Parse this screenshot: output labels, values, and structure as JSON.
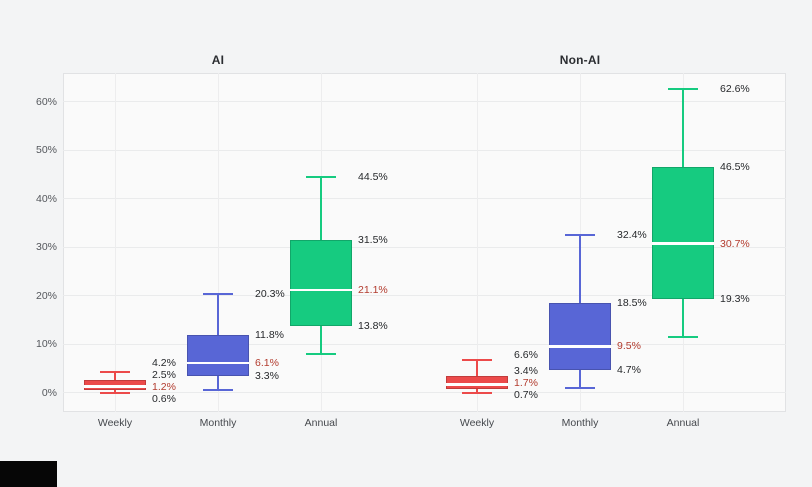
{
  "colors": {
    "page_bg": "#f3f4f5",
    "plot_bg": "#fafafa",
    "grid": "#eaebec",
    "label": "#26282b",
    "median_label": "#b23b2e",
    "median_line": "#ffffff"
  },
  "chart_data": {
    "type": "box",
    "y_axis": {
      "tick_labels": [
        "0%",
        "10%",
        "20%",
        "30%",
        "40%",
        "50%",
        "60%"
      ],
      "tick_values": [
        0,
        10,
        20,
        30,
        40,
        50,
        60
      ],
      "range_pct": [
        -4,
        66
      ],
      "grid": true
    },
    "categories": [
      "Weekly",
      "Monthly",
      "Annual"
    ],
    "panels": [
      {
        "title": "AI",
        "boxes": [
          {
            "category": "Weekly",
            "color": "#ec4a4a",
            "whisker_high": 4.2,
            "q3": 2.5,
            "median": 1.2,
            "q1": 0.6,
            "whisker_low": 0.0,
            "labels": [
              {
                "text": "4.2%",
                "value": 4.2,
                "emph": false
              },
              {
                "text": "2.5%",
                "value": 2.5,
                "emph": false
              },
              {
                "text": "1.2%",
                "value": 1.2,
                "emph": true
              },
              {
                "text": "0.6%",
                "value": 0.6,
                "emph": false
              }
            ]
          },
          {
            "category": "Monthly",
            "color": "#5866d6",
            "whisker_high": 20.3,
            "q3": 11.8,
            "median": 6.1,
            "q1": 3.3,
            "whisker_low": 0.5,
            "labels": [
              {
                "text": "20.3%",
                "value": 20.3,
                "emph": false
              },
              {
                "text": "11.8%",
                "value": 11.8,
                "emph": false
              },
              {
                "text": "6.1%",
                "value": 6.1,
                "emph": true
              },
              {
                "text": "3.3%",
                "value": 3.3,
                "emph": false
              }
            ]
          },
          {
            "category": "Annual",
            "color": "#16cb80",
            "whisker_high": 44.5,
            "q3": 31.5,
            "median": 21.1,
            "q1": 13.8,
            "whisker_low": 8.0,
            "labels": [
              {
                "text": "44.5%",
                "value": 44.5,
                "emph": false
              },
              {
                "text": "31.5%",
                "value": 31.5,
                "emph": false
              },
              {
                "text": "21.1%",
                "value": 21.1,
                "emph": true
              },
              {
                "text": "13.8%",
                "value": 13.8,
                "emph": false
              }
            ]
          }
        ]
      },
      {
        "title": "Non-AI",
        "boxes": [
          {
            "category": "Weekly",
            "color": "#ec4a4a",
            "whisker_high": 6.6,
            "q3": 3.4,
            "median": 1.7,
            "q1": 0.7,
            "whisker_low": 0.0,
            "labels": [
              {
                "text": "6.6%",
                "value": 6.6,
                "emph": false
              },
              {
                "text": "3.4%",
                "value": 3.4,
                "emph": false
              },
              {
                "text": "1.7%",
                "value": 1.7,
                "emph": true
              },
              {
                "text": "0.7%",
                "value": 0.7,
                "emph": false
              }
            ]
          },
          {
            "category": "Monthly",
            "color": "#5866d6",
            "whisker_high": 32.4,
            "q3": 18.5,
            "median": 9.5,
            "q1": 4.7,
            "whisker_low": 1.0,
            "labels": [
              {
                "text": "32.4%",
                "value": 32.4,
                "emph": false
              },
              {
                "text": "18.5%",
                "value": 18.5,
                "emph": false
              },
              {
                "text": "9.5%",
                "value": 9.5,
                "emph": true
              },
              {
                "text": "4.7%",
                "value": 4.7,
                "emph": false
              }
            ]
          },
          {
            "category": "Annual",
            "color": "#16cb80",
            "whisker_high": 62.6,
            "q3": 46.5,
            "median": 30.7,
            "q1": 19.3,
            "whisker_low": 11.5,
            "labels": [
              {
                "text": "62.6%",
                "value": 62.6,
                "emph": false
              },
              {
                "text": "46.5%",
                "value": 46.5,
                "emph": false
              },
              {
                "text": "30.7%",
                "value": 30.7,
                "emph": true
              },
              {
                "text": "19.3%",
                "value": 19.3,
                "emph": false
              }
            ]
          }
        ]
      }
    ]
  }
}
